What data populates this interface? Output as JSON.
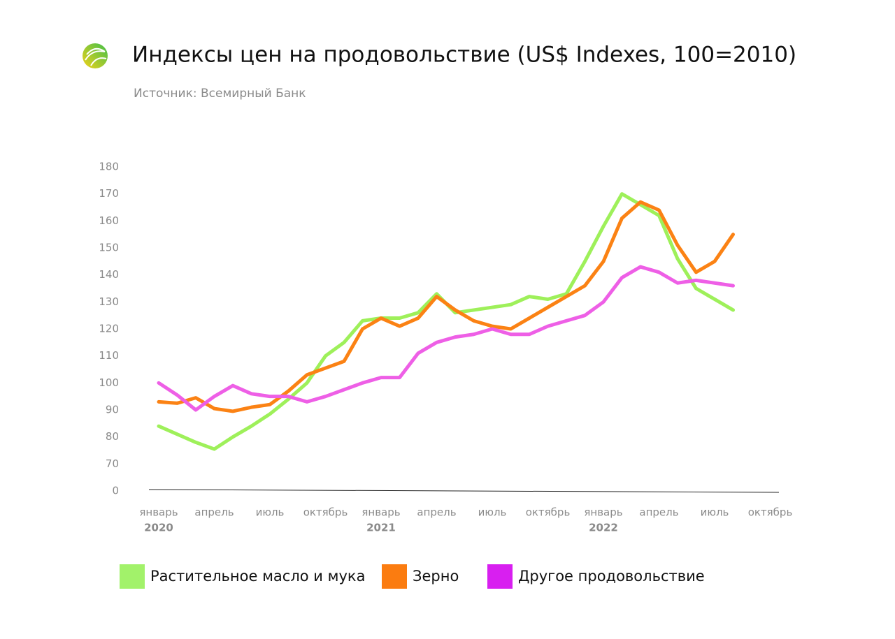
{
  "chart_data": {
    "type": "line",
    "title": "Индексы цен на продовольствие (US$ Indexes, 100=2010)",
    "subtitle": "Источник: Всемирный Банк",
    "categories": [
      "январь",
      null,
      null,
      "апрель",
      null,
      null,
      "июль",
      null,
      null,
      "октябрь",
      null,
      null,
      "январь",
      null,
      null,
      "апрель",
      null,
      null,
      "июль",
      null,
      null,
      "октябрь",
      null,
      null,
      "январь",
      null,
      null,
      "апрель",
      null,
      null,
      "июль",
      null,
      null,
      "октябрь"
    ],
    "year_labels": [
      "2020",
      null,
      null,
      null,
      null,
      null,
      null,
      null,
      null,
      null,
      null,
      null,
      "2021",
      null,
      null,
      null,
      null,
      null,
      null,
      null,
      null,
      null,
      null,
      null,
      "2022",
      null,
      null,
      null,
      null,
      null,
      null,
      null,
      null,
      null
    ],
    "series": [
      {
        "name": "Растительное масло и мука",
        "color": "#9ef05a",
        "values": [
          84,
          81,
          78,
          75.5,
          80,
          84,
          88.5,
          94,
          100,
          110,
          115,
          123,
          124,
          124,
          126,
          133,
          126,
          127,
          128,
          129,
          132,
          131,
          133,
          145,
          158,
          170,
          166,
          162,
          146,
          135,
          131,
          127,
          null,
          null
        ]
      },
      {
        "name": "Зерно",
        "color": "#fb8214",
        "values": [
          93,
          92.5,
          94.5,
          90.5,
          89.5,
          91,
          92,
          97,
          103,
          105.5,
          108,
          120,
          124,
          121,
          124,
          132,
          127,
          123,
          121,
          120,
          124,
          128,
          132,
          136,
          145,
          161,
          167,
          164,
          151,
          141,
          145,
          155,
          null,
          null
        ]
      },
      {
        "name": "Другое продовольствие",
        "color": "#ee5fe6",
        "values": [
          100,
          95.5,
          90,
          95,
          99,
          96,
          95,
          95,
          93,
          95,
          97.5,
          100,
          102,
          102,
          111,
          115,
          117,
          118,
          120,
          118,
          118,
          121,
          123,
          125,
          130,
          139,
          143,
          141,
          137,
          138,
          137,
          136,
          null,
          null
        ]
      }
    ],
    "legend_colors": [
      "#a2f26a",
      "#fb7c10",
      "#d81ff0"
    ],
    "ylim": [
      0,
      180
    ],
    "yticks": [
      0,
      70,
      80,
      90,
      100,
      110,
      120,
      130,
      140,
      150,
      160,
      170,
      180
    ],
    "axis_break": true,
    "grid": false
  }
}
